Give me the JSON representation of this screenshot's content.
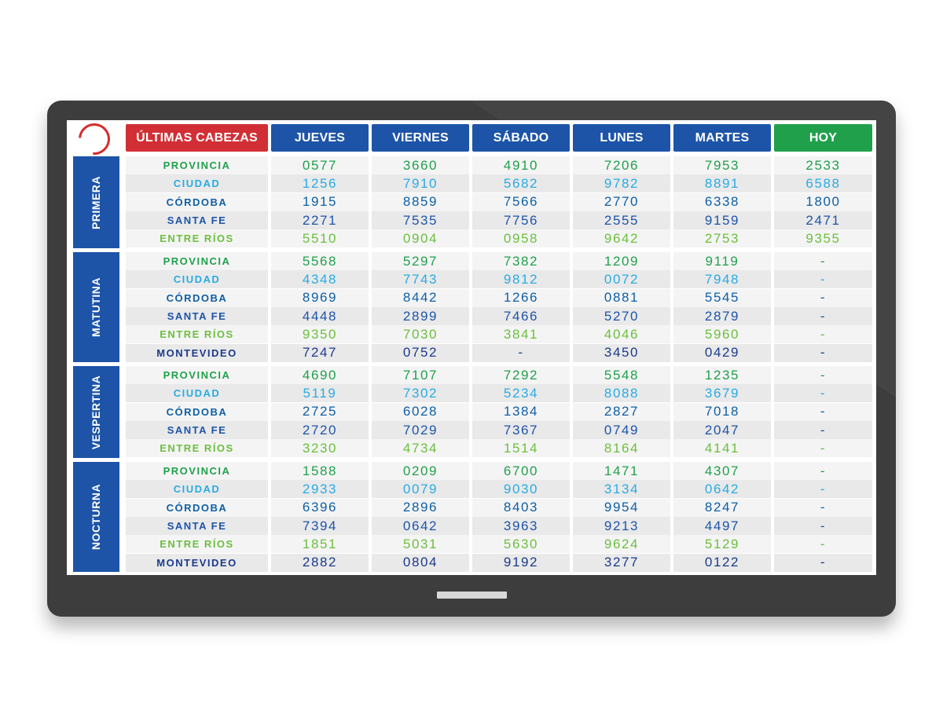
{
  "header": {
    "title": "ÚLTIMAS CABEZAS",
    "days": [
      "JUEVES",
      "VIERNES",
      "SÁBADO",
      "LUNES",
      "MARTES",
      "HOY"
    ]
  },
  "colors": {
    "brand_red": "#d12f35",
    "header_blue": "#1d54a8",
    "today_green": "#21a04c",
    "provincia": "#21a04c",
    "ciudad": "#29abe2",
    "cordoba": "#0e5fa6",
    "santa_fe": "#1d54a8",
    "entre_rios": "#6cbf3f",
    "montevideo": "#1b3a8b"
  },
  "groups": [
    {
      "name": "PRIMERA",
      "rows": [
        {
          "label": "PROVINCIA",
          "type": "provincia",
          "values": [
            "0577",
            "3660",
            "4910",
            "7206",
            "7953",
            "2533"
          ]
        },
        {
          "label": "CIUDAD",
          "type": "ciudad",
          "values": [
            "1256",
            "7910",
            "5682",
            "9782",
            "8891",
            "6588"
          ]
        },
        {
          "label": "CÓRDOBA",
          "type": "cordoba",
          "values": [
            "1915",
            "8859",
            "7566",
            "2770",
            "6338",
            "1800"
          ]
        },
        {
          "label": "SANTA FE",
          "type": "santa_fe",
          "values": [
            "2271",
            "7535",
            "7756",
            "2555",
            "9159",
            "2471"
          ]
        },
        {
          "label": "ENTRE RÍOS",
          "type": "entre_rios",
          "values": [
            "5510",
            "0904",
            "0958",
            "9642",
            "2753",
            "9355"
          ]
        }
      ]
    },
    {
      "name": "MATUTINA",
      "rows": [
        {
          "label": "PROVINCIA",
          "type": "provincia",
          "values": [
            "5568",
            "5297",
            "7382",
            "1209",
            "9119",
            "-"
          ]
        },
        {
          "label": "CIUDAD",
          "type": "ciudad",
          "values": [
            "4348",
            "7743",
            "9812",
            "0072",
            "7948",
            "-"
          ]
        },
        {
          "label": "CÓRDOBA",
          "type": "cordoba",
          "values": [
            "8969",
            "8442",
            "1266",
            "0881",
            "5545",
            "-"
          ]
        },
        {
          "label": "SANTA FE",
          "type": "santa_fe",
          "values": [
            "4448",
            "2899",
            "7466",
            "5270",
            "2879",
            "-"
          ]
        },
        {
          "label": "ENTRE RÍOS",
          "type": "entre_rios",
          "values": [
            "9350",
            "7030",
            "3841",
            "4046",
            "5960",
            "-"
          ]
        },
        {
          "label": "MONTEVIDEO",
          "type": "montevideo",
          "values": [
            "7247",
            "0752",
            "-",
            "3450",
            "0429",
            "-"
          ]
        }
      ]
    },
    {
      "name": "VESPERTINA",
      "rows": [
        {
          "label": "PROVINCIA",
          "type": "provincia",
          "values": [
            "4690",
            "7107",
            "7292",
            "5548",
            "1235",
            "-"
          ]
        },
        {
          "label": "CIUDAD",
          "type": "ciudad",
          "values": [
            "5119",
            "7302",
            "5234",
            "8088",
            "3679",
            "-"
          ]
        },
        {
          "label": "CÓRDOBA",
          "type": "cordoba",
          "values": [
            "2725",
            "6028",
            "1384",
            "2827",
            "7018",
            "-"
          ]
        },
        {
          "label": "SANTA FE",
          "type": "santa_fe",
          "values": [
            "2720",
            "7029",
            "7367",
            "0749",
            "2047",
            "-"
          ]
        },
        {
          "label": "ENTRE RÍOS",
          "type": "entre_rios",
          "values": [
            "3230",
            "4734",
            "1514",
            "8164",
            "4141",
            "-"
          ]
        }
      ]
    },
    {
      "name": "NOCTURNA",
      "rows": [
        {
          "label": "PROVINCIA",
          "type": "provincia",
          "values": [
            "1588",
            "0209",
            "6700",
            "1471",
            "4307",
            "-"
          ]
        },
        {
          "label": "CIUDAD",
          "type": "ciudad",
          "values": [
            "2933",
            "0079",
            "9030",
            "3134",
            "0642",
            "-"
          ]
        },
        {
          "label": "CÓRDOBA",
          "type": "cordoba",
          "values": [
            "6396",
            "2896",
            "8403",
            "9954",
            "8247",
            "-"
          ]
        },
        {
          "label": "SANTA FE",
          "type": "santa_fe",
          "values": [
            "7394",
            "0642",
            "3963",
            "9213",
            "4497",
            "-"
          ]
        },
        {
          "label": "ENTRE RÍOS",
          "type": "entre_rios",
          "values": [
            "1851",
            "5031",
            "5630",
            "9624",
            "5129",
            "-"
          ]
        },
        {
          "label": "MONTEVIDEO",
          "type": "montevideo",
          "values": [
            "2882",
            "0804",
            "9192",
            "3277",
            "0122",
            "-"
          ]
        }
      ]
    }
  ]
}
